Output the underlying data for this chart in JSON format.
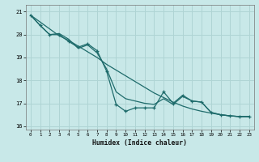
{
  "xlabel": "Humidex (Indice chaleur)",
  "bg_color": "#c8e8e8",
  "grid_color": "#afd4d4",
  "line_color": "#1e6b6b",
  "xlim": [
    -0.5,
    23.5
  ],
  "ylim": [
    15.85,
    21.3
  ],
  "yticks": [
    16,
    17,
    18,
    19,
    20,
    21
  ],
  "xticks": [
    0,
    1,
    2,
    3,
    4,
    5,
    6,
    7,
    8,
    9,
    10,
    11,
    12,
    13,
    14,
    15,
    16,
    17,
    18,
    19,
    20,
    21,
    22,
    23
  ],
  "series_smooth_x": [
    0,
    1,
    2,
    3,
    4,
    5,
    6,
    7,
    8,
    9,
    10,
    11,
    12,
    13,
    14,
    15,
    16,
    17,
    18,
    19,
    20,
    21,
    22,
    23
  ],
  "series_smooth_y": [
    20.85,
    20.55,
    20.25,
    19.95,
    19.75,
    19.5,
    19.25,
    19.0,
    18.7,
    18.45,
    18.2,
    17.95,
    17.7,
    17.45,
    17.25,
    17.05,
    16.88,
    16.75,
    16.65,
    16.57,
    16.5,
    16.45,
    16.42,
    16.42
  ],
  "series_marker_x": [
    0,
    1,
    2,
    3,
    4,
    5,
    6,
    7,
    8,
    9,
    10,
    11,
    12,
    13,
    14,
    15,
    16,
    17,
    18,
    19,
    20,
    21,
    22,
    23
  ],
  "series_marker_y": [
    20.85,
    20.4,
    20.0,
    20.0,
    19.7,
    19.45,
    19.6,
    19.3,
    18.4,
    16.95,
    16.65,
    16.8,
    16.8,
    16.8,
    17.5,
    17.0,
    17.35,
    17.1,
    17.05,
    16.6,
    16.5,
    16.45,
    16.42,
    16.42
  ],
  "series_curve_x": [
    0,
    1,
    2,
    3,
    4,
    5,
    6,
    7,
    8,
    9,
    10,
    11,
    12,
    13,
    14,
    15,
    16,
    17,
    18,
    19,
    20,
    21,
    22,
    23
  ],
  "series_curve_y": [
    20.85,
    20.4,
    20.0,
    20.05,
    19.8,
    19.4,
    19.55,
    19.2,
    18.5,
    17.5,
    17.2,
    17.1,
    17.0,
    16.95,
    17.2,
    16.95,
    17.3,
    17.1,
    17.05,
    16.6,
    16.5,
    16.45,
    16.42,
    16.42
  ]
}
